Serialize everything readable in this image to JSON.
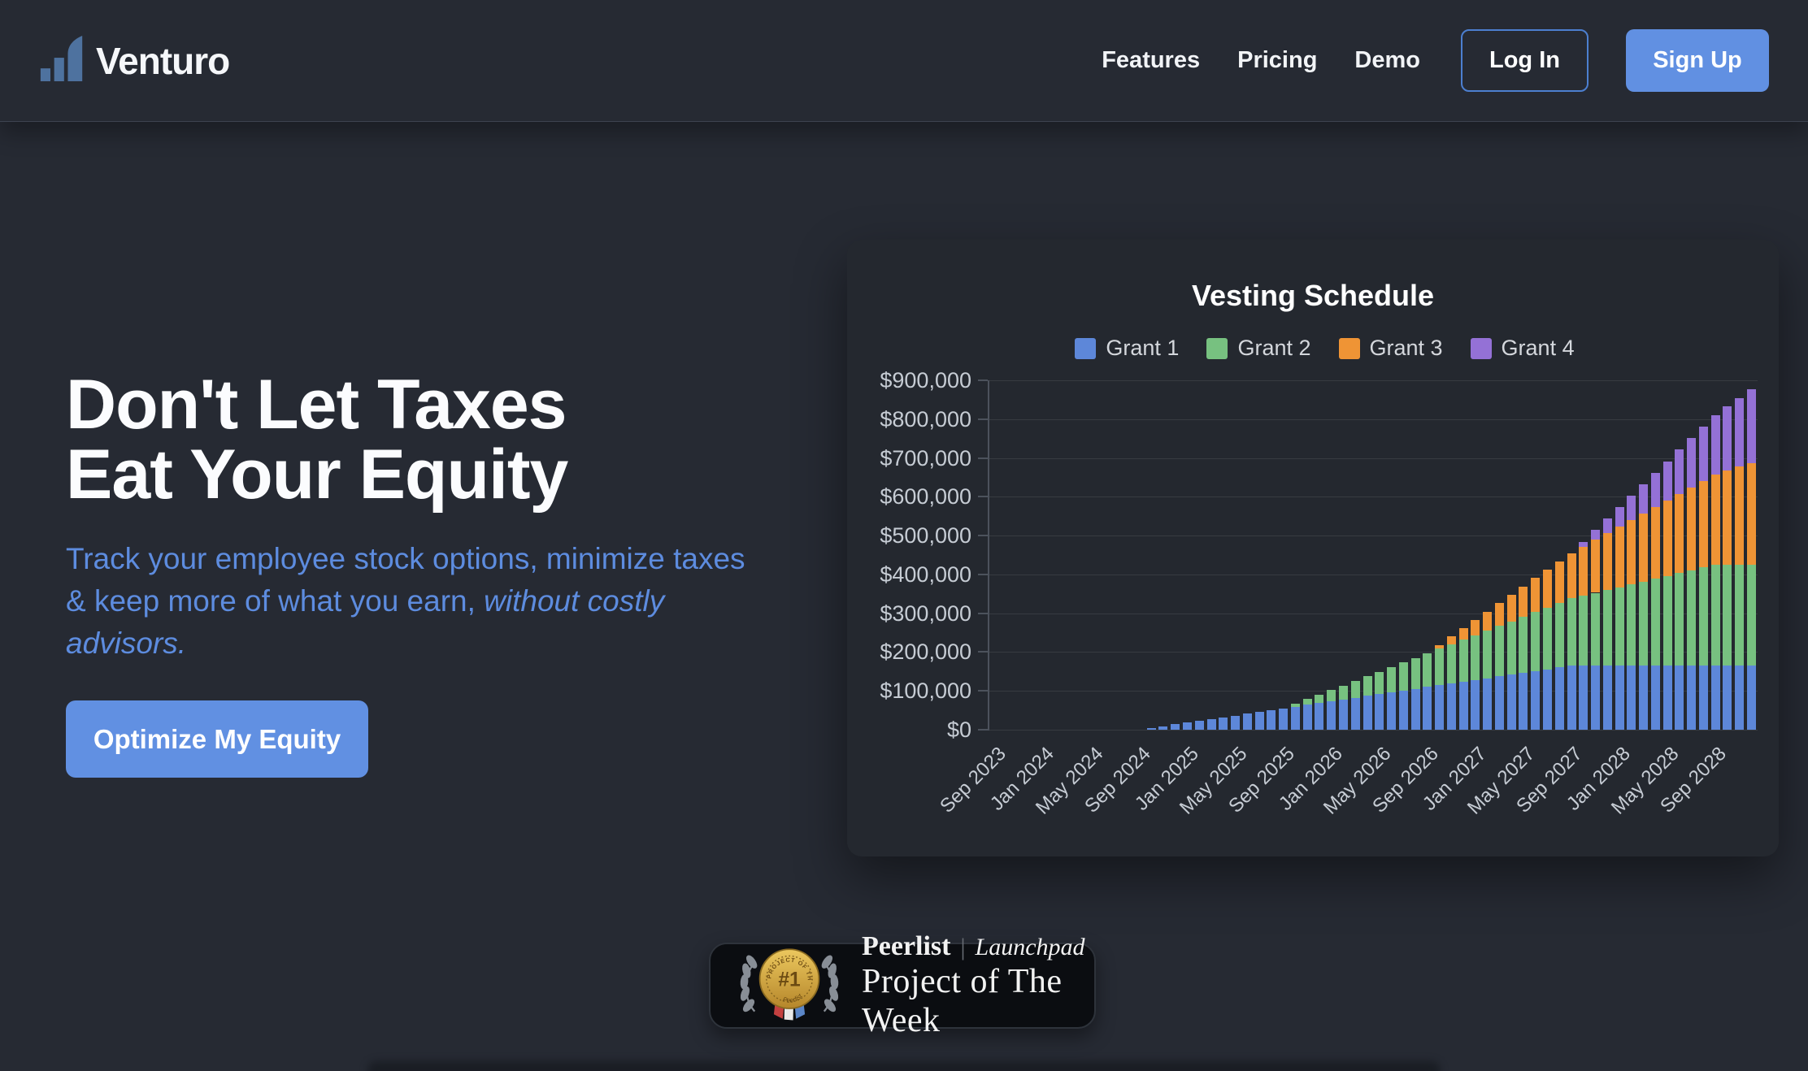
{
  "brand": {
    "name": "Venturo",
    "logo_icon": "bar-chart-growth-icon"
  },
  "nav": {
    "items": [
      {
        "label": "Features"
      },
      {
        "label": "Pricing"
      },
      {
        "label": "Demo"
      }
    ],
    "login_label": "Log In",
    "signup_label": "Sign Up"
  },
  "hero": {
    "title_line1": "Don't Let Taxes",
    "title_line2": "Eat Your Equity",
    "subtitle_regular": "Track your employee stock options, minimize taxes & keep more of what you earn, ",
    "subtitle_italic": "without costly advisors.",
    "cta_label": "Optimize My Equity"
  },
  "colors": {
    "accent_blue": "#6190e2",
    "subtitle_blue": "#5d8cdf",
    "page_bg": "#262a33",
    "card_bg": "#24282f"
  },
  "chart_data": {
    "type": "bar",
    "stacked": true,
    "title": "Vesting Schedule",
    "legend_position": "top",
    "grid": true,
    "ylim": [
      0,
      900000
    ],
    "y_tick_labels": [
      "$900,000",
      "$800,000",
      "$700,000",
      "$600,000",
      "$500,000",
      "$400,000",
      "$300,000",
      "$200,000",
      "$100,000",
      "$0"
    ],
    "x_start": "Sep 2023",
    "x_end": "Dec 2028",
    "x_interval": "monthly",
    "bar_count": 64,
    "tick_labels": [
      "Sep 2023",
      "Jan 2024",
      "May 2024",
      "Sep 2024",
      "Jan 2025",
      "May 2025",
      "Sep 2025",
      "Jan 2026",
      "May 2026",
      "Sep 2026",
      "Jan 2027",
      "May 2027",
      "Sep 2027",
      "Jan 2028",
      "May 2028",
      "Sep 2028"
    ],
    "tick_every_n_bars": 4,
    "series": [
      {
        "name": "Grant 1",
        "color": "#5d87d9",
        "values": [
          0,
          0,
          0,
          0,
          0,
          0,
          0,
          0,
          0,
          0,
          0,
          0,
          0,
          4600,
          9200,
          13800,
          18300,
          22900,
          27500,
          32100,
          36700,
          41300,
          45800,
          50400,
          55000,
          59600,
          64200,
          68800,
          73300,
          77900,
          82500,
          87100,
          91700,
          96300,
          100800,
          105400,
          110000,
          114600,
          119200,
          123800,
          128300,
          132900,
          137500,
          142100,
          146700,
          151300,
          155800,
          160400,
          165000,
          165000,
          165000,
          165000,
          165000,
          165000,
          165000,
          165000,
          165000,
          165000,
          165000,
          165000,
          165000,
          165000,
          165000,
          165000
        ]
      },
      {
        "name": "Grant 2",
        "color": "#77c180",
        "values": [
          0,
          0,
          0,
          0,
          0,
          0,
          0,
          0,
          0,
          0,
          0,
          0,
          0,
          0,
          0,
          0,
          0,
          0,
          0,
          0,
          0,
          0,
          0,
          0,
          0,
          7200,
          14400,
          21700,
          28900,
          36100,
          43300,
          50600,
          57800,
          65000,
          72200,
          79400,
          86700,
          93900,
          101100,
          108300,
          115600,
          122800,
          130000,
          137200,
          144400,
          151700,
          158900,
          166100,
          173300,
          180600,
          187800,
          195000,
          202200,
          209400,
          216700,
          223900,
          231100,
          238300,
          245600,
          252800,
          260000,
          260000,
          260000,
          260000
        ]
      },
      {
        "name": "Grant 3",
        "color": "#ef9435",
        "values": [
          0,
          0,
          0,
          0,
          0,
          0,
          0,
          0,
          0,
          0,
          0,
          0,
          0,
          0,
          0,
          0,
          0,
          0,
          0,
          0,
          0,
          0,
          0,
          0,
          0,
          0,
          0,
          0,
          0,
          0,
          0,
          0,
          0,
          0,
          0,
          0,
          0,
          9700,
          19400,
          29200,
          38900,
          48600,
          58300,
          68100,
          77800,
          87500,
          97200,
          106900,
          116700,
          126400,
          136100,
          145800,
          155600,
          165300,
          175000,
          184700,
          194400,
          204200,
          213900,
          223600,
          233300,
          243100,
          252800,
          262500
        ]
      },
      {
        "name": "Grant 4",
        "color": "#9471d6",
        "values": [
          0,
          0,
          0,
          0,
          0,
          0,
          0,
          0,
          0,
          0,
          0,
          0,
          0,
          0,
          0,
          0,
          0,
          0,
          0,
          0,
          0,
          0,
          0,
          0,
          0,
          0,
          0,
          0,
          0,
          0,
          0,
          0,
          0,
          0,
          0,
          0,
          0,
          0,
          0,
          0,
          0,
          0,
          0,
          0,
          0,
          0,
          0,
          0,
          0,
          12600,
          25300,
          37900,
          50600,
          63200,
          75800,
          88500,
          101100,
          113800,
          126400,
          139000,
          151700,
          164300,
          176900,
          189600
        ]
      }
    ]
  },
  "badge": {
    "brand": "Peerlist",
    "divider": "|",
    "product": "Launchpad",
    "award": "Project of The Week",
    "medal_rank": "#1",
    "medal_arc_top": "PROJECT OF THE WEEK",
    "medal_arc_bottom": "Peerlist",
    "icons": [
      "laurel-wreath-icon",
      "medal-number-one-icon"
    ]
  }
}
